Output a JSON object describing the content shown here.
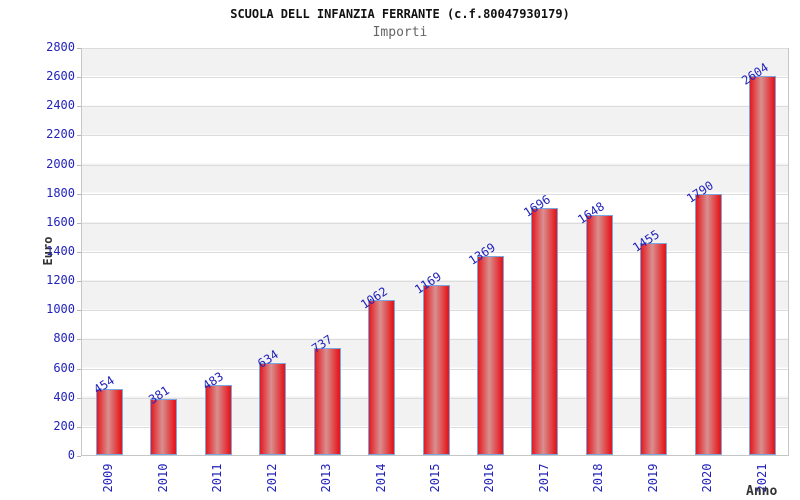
{
  "chart_data": {
    "type": "bar",
    "title": "SCUOLA DELL INFANZIA FERRANTE (c.f.80047930179)",
    "subtitle": "Importi",
    "xlabel": "Anno",
    "ylabel": "Euro",
    "categories": [
      "2009",
      "2010",
      "2011",
      "2012",
      "2013",
      "2014",
      "2015",
      "2016",
      "2017",
      "2018",
      "2019",
      "2020",
      "2021"
    ],
    "values": [
      454,
      381,
      483,
      634,
      737,
      1062,
      1169,
      1369,
      1696,
      1648,
      1455,
      1790,
      2604
    ],
    "ylim": [
      0,
      2800
    ],
    "ytick_step": 200,
    "ytick_labels": [
      "0",
      "200",
      "400",
      "600",
      "800",
      "1000",
      "1200",
      "1400",
      "1600",
      "1800",
      "2000",
      "2200",
      "2400",
      "2600",
      "2800"
    ],
    "legend": "none",
    "grid": "horizontal-bands",
    "colors": {
      "bar_red": "#e41a1f",
      "bar_highlight": "#d98f8f",
      "bar_border": "#7ba7e0",
      "label_blue": "#2323bb",
      "axis_title_color": "#333333",
      "title_color": "#111111",
      "subtitle_color": "#666666",
      "band_white": "#ffffff",
      "band_gray": "#f2f2f2",
      "gridline_color": "#dcdcdc",
      "plot_border": "#c6c6c6"
    }
  }
}
